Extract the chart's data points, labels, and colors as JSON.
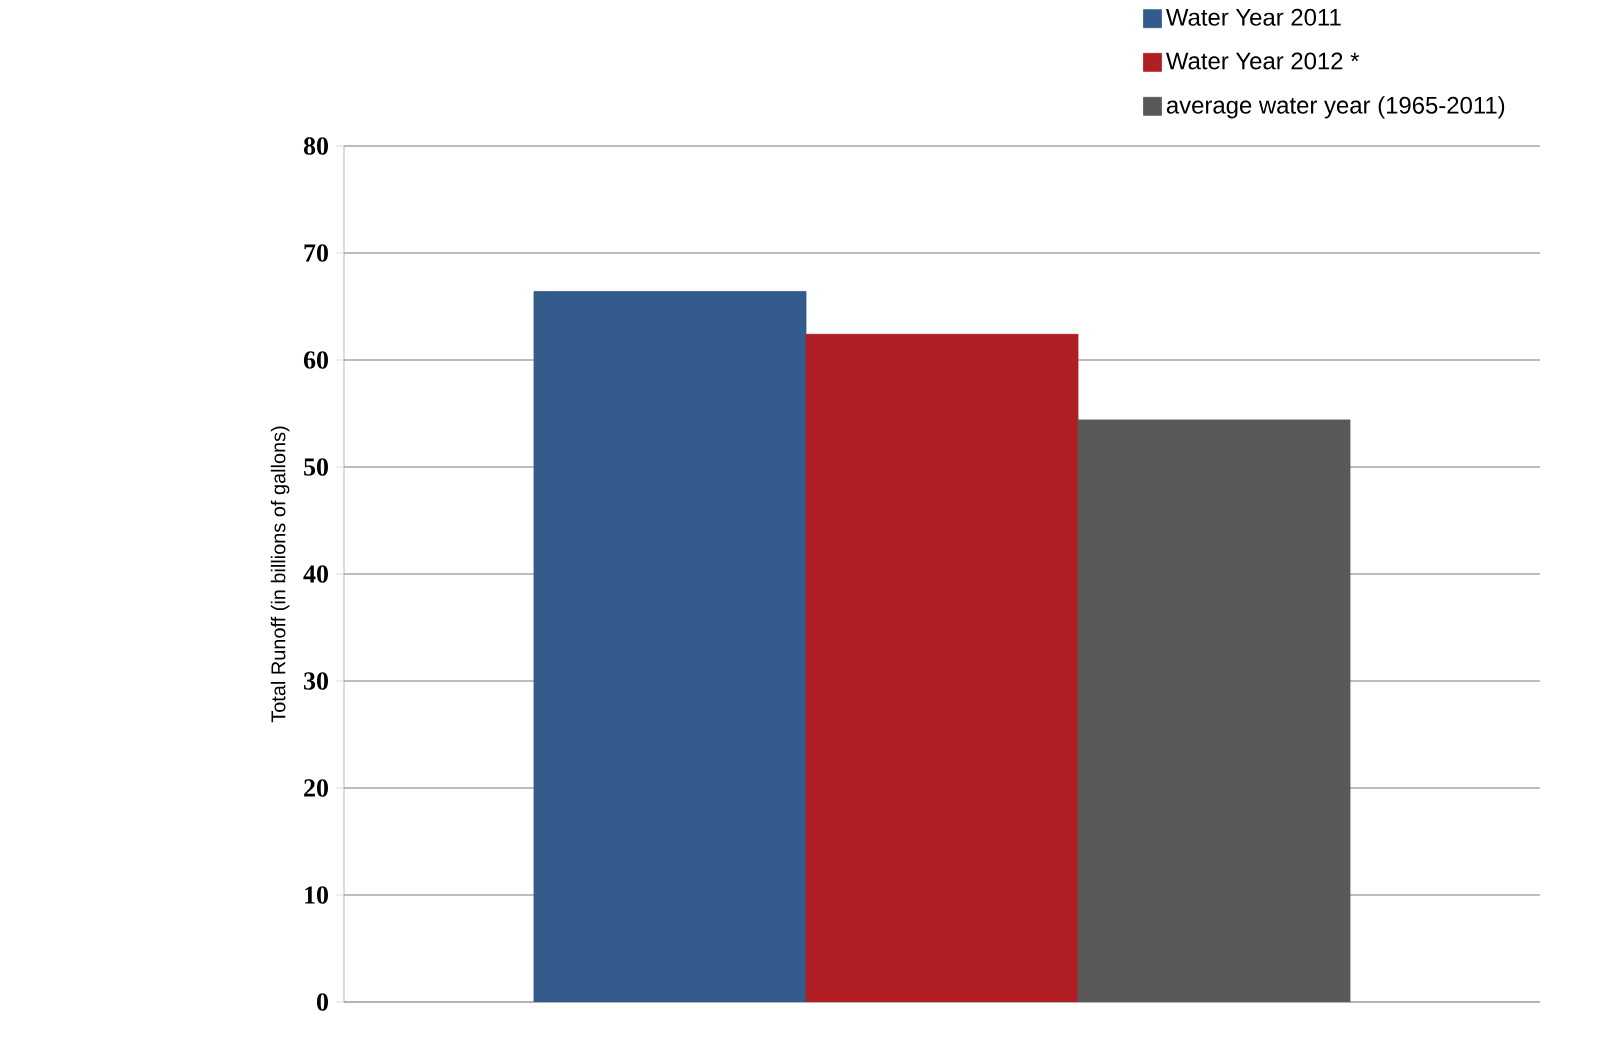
{
  "chart_data": {
    "type": "bar",
    "ylabel": "Total Runoff (in billions of gallons)",
    "categories": [
      null
    ],
    "series": [
      {
        "name": "Water Year 2011",
        "color": "#335b8c",
        "values": [
          66.4
        ]
      },
      {
        "name": "Water Year 2012 *",
        "color": "#b01e24",
        "values": [
          62.4
        ]
      },
      {
        "name": "average water year (1965-2011)",
        "color": "#595959",
        "values": [
          54.4
        ]
      }
    ],
    "ylim": [
      0,
      80
    ],
    "yticks": [
      0,
      10,
      20,
      30,
      40,
      50,
      60,
      70,
      80
    ],
    "grid": "y",
    "legend": "top right"
  }
}
